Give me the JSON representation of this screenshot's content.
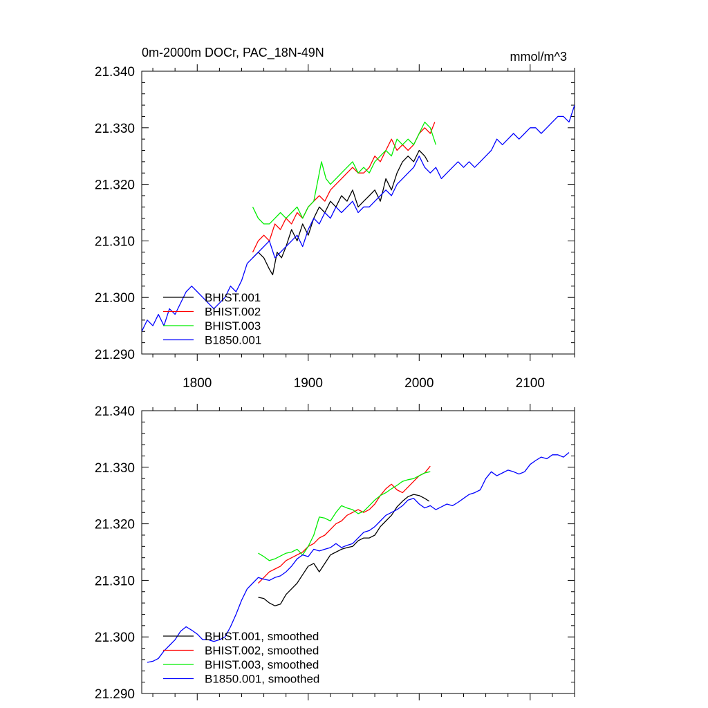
{
  "header": {
    "title": "0m-2000m DOCr, PAC_18N-49N",
    "units": "mmol/m^3"
  },
  "chart_data": [
    {
      "type": "line",
      "title": "0m-2000m DOCr, PAC_18N-49N",
      "units": "mmol/m^3",
      "xlim": [
        1750,
        2140
      ],
      "ylim": [
        21.29,
        21.34
      ],
      "xticks": [
        1800,
        1900,
        2000,
        2100
      ],
      "xtick_labels": [
        "1800",
        "1900",
        "2000",
        "2100"
      ],
      "yticks": [
        21.29,
        21.3,
        21.31,
        21.32,
        21.33,
        21.34
      ],
      "ytick_labels": [
        "21.290",
        "21.300",
        "21.310",
        "21.320",
        "21.330",
        "21.340"
      ],
      "legend_position": "lower-left",
      "series": [
        {
          "name": "BHIST.001",
          "color": "#000000",
          "x": [
            1850,
            1855,
            1860,
            1865,
            1868,
            1872,
            1876,
            1880,
            1885,
            1890,
            1895,
            1900,
            1905,
            1910,
            1915,
            1920,
            1925,
            1930,
            1935,
            1940,
            1945,
            1950,
            1955,
            1960,
            1965,
            1970,
            1975,
            1980,
            1985,
            1990,
            1995,
            2000,
            2005,
            2008
          ],
          "y": [
            21.307,
            21.308,
            21.307,
            21.305,
            21.304,
            21.308,
            21.307,
            21.309,
            21.312,
            21.31,
            21.313,
            21.311,
            21.314,
            21.316,
            21.315,
            21.317,
            21.316,
            21.318,
            21.317,
            21.319,
            21.316,
            21.317,
            21.318,
            21.319,
            21.317,
            21.321,
            21.319,
            21.322,
            21.324,
            21.325,
            21.324,
            21.326,
            21.325,
            21.324
          ]
        },
        {
          "name": "BHIST.002",
          "color": "#ff0000",
          "x": [
            1850,
            1855,
            1860,
            1865,
            1870,
            1875,
            1880,
            1885,
            1890,
            1895,
            1900,
            1905,
            1910,
            1915,
            1920,
            1925,
            1930,
            1935,
            1940,
            1945,
            1950,
            1955,
            1960,
            1965,
            1970,
            1975,
            1980,
            1985,
            1990,
            1995,
            2000,
            2005,
            2010,
            2014
          ],
          "y": [
            21.308,
            21.31,
            21.311,
            21.31,
            21.313,
            21.312,
            21.314,
            21.313,
            21.315,
            21.314,
            21.316,
            21.317,
            21.318,
            21.317,
            21.319,
            21.32,
            21.321,
            21.322,
            21.323,
            21.322,
            21.322,
            21.323,
            21.325,
            21.324,
            21.326,
            21.328,
            21.326,
            21.327,
            21.326,
            21.327,
            21.329,
            21.33,
            21.329,
            21.331
          ]
        },
        {
          "name": "BHIST.003",
          "color": "#00ee00",
          "x": [
            1850,
            1855,
            1860,
            1865,
            1870,
            1875,
            1880,
            1885,
            1890,
            1895,
            1900,
            1905,
            1908,
            1912,
            1916,
            1920,
            1925,
            1930,
            1935,
            1940,
            1945,
            1950,
            1955,
            1960,
            1965,
            1970,
            1975,
            1980,
            1985,
            1990,
            1995,
            2000,
            2005,
            2010,
            2015
          ],
          "y": [
            21.316,
            21.314,
            21.313,
            21.313,
            21.314,
            21.315,
            21.314,
            21.315,
            21.316,
            21.314,
            21.316,
            21.317,
            21.32,
            21.324,
            21.321,
            21.32,
            21.321,
            21.322,
            21.323,
            21.324,
            21.322,
            21.323,
            21.322,
            21.324,
            21.325,
            21.326,
            21.325,
            21.328,
            21.327,
            21.328,
            21.327,
            21.329,
            21.331,
            21.33,
            21.327
          ]
        },
        {
          "name": "B1850.001",
          "color": "#0000ff",
          "x": [
            1750,
            1755,
            1760,
            1765,
            1770,
            1775,
            1780,
            1785,
            1790,
            1795,
            1800,
            1805,
            1810,
            1815,
            1820,
            1825,
            1830,
            1835,
            1840,
            1845,
            1850,
            1855,
            1860,
            1865,
            1870,
            1875,
            1880,
            1885,
            1890,
            1895,
            1900,
            1905,
            1910,
            1915,
            1920,
            1925,
            1930,
            1935,
            1940,
            1945,
            1950,
            1955,
            1960,
            1965,
            1970,
            1975,
            1980,
            1985,
            1990,
            1995,
            2000,
            2005,
            2010,
            2015,
            2020,
            2025,
            2030,
            2035,
            2040,
            2045,
            2050,
            2055,
            2060,
            2065,
            2070,
            2075,
            2080,
            2085,
            2090,
            2095,
            2100,
            2105,
            2110,
            2115,
            2120,
            2125,
            2130,
            2135,
            2140
          ],
          "y": [
            21.294,
            21.296,
            21.295,
            21.297,
            21.295,
            21.298,
            21.297,
            21.299,
            21.301,
            21.302,
            21.301,
            21.3,
            21.299,
            21.298,
            21.299,
            21.3,
            21.302,
            21.301,
            21.303,
            21.306,
            21.307,
            21.308,
            21.309,
            21.31,
            21.307,
            21.308,
            21.309,
            21.31,
            21.311,
            21.309,
            21.312,
            21.314,
            21.313,
            21.315,
            21.314,
            21.316,
            21.315,
            21.316,
            21.317,
            21.315,
            21.316,
            21.316,
            21.317,
            21.318,
            21.319,
            21.318,
            21.32,
            21.321,
            21.322,
            21.323,
            21.325,
            21.323,
            21.322,
            21.323,
            21.321,
            21.322,
            21.323,
            21.324,
            21.323,
            21.324,
            21.323,
            21.324,
            21.325,
            21.326,
            21.328,
            21.327,
            21.328,
            21.329,
            21.328,
            21.329,
            21.33,
            21.33,
            21.329,
            21.33,
            21.331,
            21.332,
            21.332,
            21.331,
            21.334
          ]
        }
      ]
    },
    {
      "type": "line",
      "xlim": [
        1750,
        2140
      ],
      "ylim": [
        21.29,
        21.34
      ],
      "xticks": [
        1800,
        1900,
        2000,
        2100
      ],
      "yticks": [
        21.29,
        21.3,
        21.31,
        21.32,
        21.33,
        21.34
      ],
      "ytick_labels": [
        "21.290",
        "21.300",
        "21.310",
        "21.320",
        "21.330",
        "21.340"
      ],
      "legend_position": "lower-left",
      "series": [
        {
          "name": "BHIST.001, smoothed",
          "color": "#000000",
          "x": [
            1855,
            1860,
            1865,
            1870,
            1875,
            1880,
            1885,
            1890,
            1895,
            1900,
            1905,
            1910,
            1915,
            1920,
            1925,
            1930,
            1935,
            1940,
            1945,
            1950,
            1955,
            1960,
            1965,
            1970,
            1975,
            1980,
            1985,
            1990,
            1995,
            2000,
            2005,
            2009
          ],
          "y": [
            21.307,
            21.3068,
            21.306,
            21.3055,
            21.3058,
            21.3075,
            21.3085,
            21.3095,
            21.311,
            21.3125,
            21.313,
            21.3115,
            21.313,
            21.3145,
            21.315,
            21.3155,
            21.3158,
            21.316,
            21.317,
            21.3175,
            21.3175,
            21.318,
            21.3195,
            21.3205,
            21.3215,
            21.323,
            21.324,
            21.3248,
            21.3252,
            21.325,
            21.3245,
            21.324
          ]
        },
        {
          "name": "BHIST.002, smoothed",
          "color": "#ff0000",
          "x": [
            1855,
            1860,
            1865,
            1870,
            1875,
            1880,
            1885,
            1890,
            1895,
            1900,
            1905,
            1910,
            1915,
            1920,
            1925,
            1930,
            1935,
            1940,
            1945,
            1950,
            1955,
            1960,
            1965,
            1970,
            1975,
            1980,
            1985,
            1990,
            1995,
            2000,
            2005,
            2010
          ],
          "y": [
            21.3095,
            21.3105,
            21.3115,
            21.312,
            21.3125,
            21.3135,
            21.314,
            21.3145,
            21.315,
            21.316,
            21.3165,
            21.3175,
            21.318,
            21.319,
            21.32,
            21.3205,
            21.3215,
            21.322,
            21.3225,
            21.322,
            21.3225,
            21.3235,
            21.325,
            21.3262,
            21.327,
            21.326,
            21.3255,
            21.3265,
            21.3275,
            21.3285,
            21.329,
            21.3302
          ]
        },
        {
          "name": "BHIST.003, smoothed",
          "color": "#00ee00",
          "x": [
            1855,
            1860,
            1865,
            1870,
            1875,
            1880,
            1885,
            1890,
            1895,
            1900,
            1905,
            1910,
            1915,
            1920,
            1925,
            1930,
            1935,
            1940,
            1945,
            1950,
            1955,
            1960,
            1965,
            1970,
            1975,
            1980,
            1985,
            1990,
            1995,
            2000,
            2005,
            2010
          ],
          "y": [
            21.3148,
            21.3142,
            21.3135,
            21.3138,
            21.3143,
            21.3148,
            21.315,
            21.3155,
            21.3145,
            21.316,
            21.318,
            21.3212,
            21.321,
            21.3205,
            21.322,
            21.3232,
            21.3228,
            21.3225,
            21.3218,
            21.3222,
            21.3232,
            21.3242,
            21.325,
            21.3255,
            21.3262,
            21.3268,
            21.3275,
            21.3278,
            21.328,
            21.3285,
            21.329,
            21.3292
          ]
        },
        {
          "name": "B1850.001, smoothed",
          "color": "#0000ff",
          "x": [
            1755,
            1760,
            1765,
            1770,
            1775,
            1780,
            1785,
            1790,
            1795,
            1800,
            1805,
            1810,
            1815,
            1820,
            1825,
            1830,
            1835,
            1840,
            1845,
            1850,
            1855,
            1860,
            1865,
            1870,
            1875,
            1880,
            1885,
            1890,
            1895,
            1900,
            1905,
            1910,
            1915,
            1920,
            1925,
            1930,
            1935,
            1940,
            1945,
            1950,
            1955,
            1960,
            1965,
            1970,
            1975,
            1980,
            1985,
            1990,
            1995,
            2000,
            2005,
            2010,
            2015,
            2020,
            2025,
            2030,
            2035,
            2040,
            2045,
            2050,
            2055,
            2060,
            2065,
            2070,
            2075,
            2080,
            2085,
            2090,
            2095,
            2100,
            2105,
            2110,
            2115,
            2120,
            2125,
            2130,
            2135
          ],
          "y": [
            21.2955,
            21.2957,
            21.2962,
            21.2975,
            21.2985,
            21.2995,
            21.301,
            21.3018,
            21.3012,
            21.3005,
            21.2995,
            21.2995,
            21.2992,
            21.2995,
            21.3,
            21.3018,
            21.304,
            21.3065,
            21.3085,
            21.3095,
            21.3105,
            21.3102,
            21.31,
            21.3105,
            21.3108,
            21.3115,
            21.3125,
            21.3138,
            21.3145,
            21.3142,
            21.3155,
            21.3152,
            21.3155,
            21.3158,
            21.3165,
            21.3158,
            21.3162,
            21.3165,
            21.3175,
            21.3185,
            21.3188,
            21.3195,
            21.3205,
            21.3215,
            21.322,
            21.3225,
            21.3232,
            21.3242,
            21.3245,
            21.3235,
            21.3228,
            21.3232,
            21.3225,
            21.323,
            21.3235,
            21.3232,
            21.3238,
            21.3245,
            21.3252,
            21.3255,
            21.326,
            21.328,
            21.3292,
            21.3285,
            21.329,
            21.3295,
            21.3292,
            21.3288,
            21.3292,
            21.3305,
            21.3312,
            21.3318,
            21.3315,
            21.3322,
            21.3322,
            21.3318,
            21.3326
          ]
        }
      ]
    }
  ]
}
